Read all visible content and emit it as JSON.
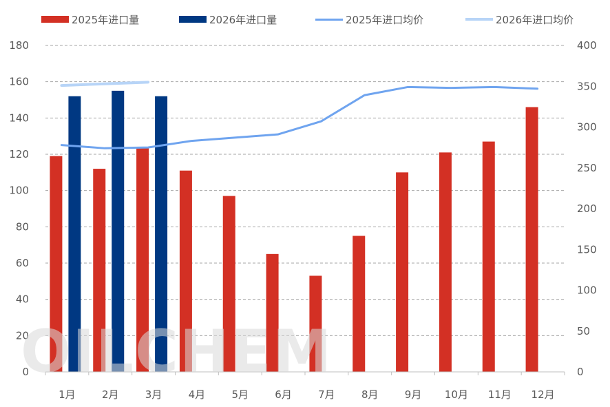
{
  "chart_data": {
    "type": "bar",
    "categories": [
      "1月",
      "2月",
      "3月",
      "4月",
      "5月",
      "6月",
      "7月",
      "8月",
      "9月",
      "10月",
      "11月",
      "12月"
    ],
    "series": [
      {
        "name": "2025年进口量",
        "type": "bar",
        "axis": "left",
        "color": "#d33024",
        "values": [
          119,
          112,
          124,
          111,
          97,
          65,
          53,
          75,
          110,
          121,
          127,
          146
        ]
      },
      {
        "name": "2026年进口量",
        "type": "bar",
        "axis": "left",
        "color": "#003882",
        "values": [
          152,
          155,
          152,
          null,
          null,
          null,
          null,
          null,
          null,
          null,
          null,
          null
        ]
      },
      {
        "name": "2025年进口均价",
        "type": "line",
        "axis": "right",
        "color": "#6fa4ef",
        "values": [
          278,
          274,
          275,
          283,
          287,
          291,
          307,
          339,
          349,
          348,
          349,
          347
        ]
      },
      {
        "name": "2026年进口均价",
        "type": "line",
        "axis": "right",
        "color": "#b7d4f7",
        "values": [
          351,
          353,
          355,
          null,
          null,
          null,
          null,
          null,
          null,
          null,
          null,
          null
        ]
      }
    ],
    "y_left": {
      "min": 0,
      "max": 180,
      "ticks": [
        "0",
        "20",
        "40",
        "60",
        "80",
        "100",
        "120",
        "140",
        "160",
        "180"
      ]
    },
    "y_right": {
      "min": 0,
      "max": 400,
      "ticks": [
        "0",
        "50",
        "100",
        "150",
        "200",
        "250",
        "300",
        "350",
        "400"
      ]
    },
    "grid": "dashed horizontal",
    "legend_position": "top"
  },
  "watermark": "OILCHEM"
}
